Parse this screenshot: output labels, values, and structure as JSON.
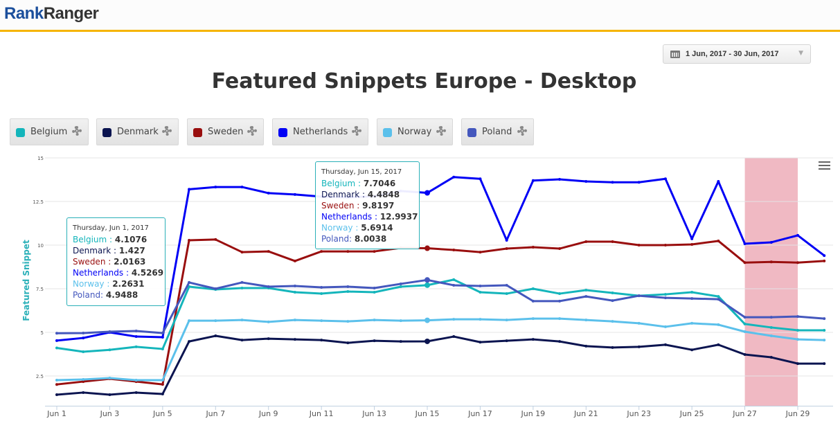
{
  "header": {
    "logo_part1": "Rank",
    "logo_part2": "Ranger"
  },
  "date_range": {
    "label": "1 Jun, 2017 - 30 Jun, 2017",
    "icon": "calendar-icon"
  },
  "legend": [
    {
      "label": "Belgium",
      "color": "#14b5bb"
    },
    {
      "label": "Denmark",
      "color": "#0b1450"
    },
    {
      "label": "Sweden",
      "color": "#990e0e"
    },
    {
      "label": "Netherlands",
      "color": "#0000f5"
    },
    {
      "label": "Norway",
      "color": "#5bc0eb"
    },
    {
      "label": "Poland",
      "color": "#4457bd"
    }
  ],
  "tooltips": [
    {
      "date": "Thursday, Jun 1, 2017",
      "rows": [
        {
          "label": "Belgium : ",
          "value": "4.1076",
          "color": "#14b5bb"
        },
        {
          "label": "Denmark : ",
          "value": "1.427",
          "color": "#0b1450"
        },
        {
          "label": "Sweden : ",
          "value": "2.0163",
          "color": "#990e0e"
        },
        {
          "label": "Netherlands : ",
          "value": "4.5269",
          "color": "#0000f5"
        },
        {
          "label": "Norway : ",
          "value": "2.2631",
          "color": "#5bc0eb"
        },
        {
          "label": "Poland: ",
          "value": "4.9488",
          "color": "#4457bd"
        }
      ]
    },
    {
      "date": "Thursday, Jun 15, 2017",
      "rows": [
        {
          "label": "Belgium : ",
          "value": "7.7046",
          "color": "#14b5bb"
        },
        {
          "label": "Denmark : ",
          "value": "4.4848",
          "color": "#0b1450"
        },
        {
          "label": "Sweden : ",
          "value": "9.8197",
          "color": "#990e0e"
        },
        {
          "label": "Netherlands : ",
          "value": "12.9937",
          "color": "#0000f5"
        },
        {
          "label": "Norway : ",
          "value": "5.6914",
          "color": "#5bc0eb"
        },
        {
          "label": "Poland: ",
          "value": "8.0038",
          "color": "#4457bd"
        }
      ]
    }
  ],
  "chart_data": {
    "type": "line",
    "title": "Featured Snippets Europe - Desktop",
    "xlabel": "",
    "ylabel": "Featured Snippet",
    "ylim": [
      0.8,
      15
    ],
    "yticks": [
      2.5,
      5,
      7.5,
      10,
      12.5,
      15
    ],
    "ytick_labels": [
      "2.5",
      "5",
      "7.5",
      "10",
      "12.5",
      "15"
    ],
    "grid": true,
    "x": [
      "Jun 1",
      "Jun 2",
      "Jun 3",
      "Jun 4",
      "Jun 5",
      "Jun 6",
      "Jun 7",
      "Jun 8",
      "Jun 9",
      "Jun 10",
      "Jun 11",
      "Jun 12",
      "Jun 13",
      "Jun 14",
      "Jun 15",
      "Jun 16",
      "Jun 17",
      "Jun 18",
      "Jun 19",
      "Jun 20",
      "Jun 21",
      "Jun 22",
      "Jun 23",
      "Jun 24",
      "Jun 25",
      "Jun 26",
      "Jun 27",
      "Jun 28",
      "Jun 29",
      "Jun 30"
    ],
    "xtick_labels": [
      "Jun 1",
      "Jun 3",
      "Jun 5",
      "Jun 7",
      "Jun 9",
      "Jun 11",
      "Jun 13",
      "Jun 15",
      "Jun 17",
      "Jun 19",
      "Jun 21",
      "Jun 23",
      "Jun 25",
      "Jun 27",
      "Jun 29"
    ],
    "highlight_band": {
      "from": "Jun 27",
      "to": "Jun 29",
      "color": "#efb5c0"
    },
    "series": [
      {
        "name": "Netherlands",
        "color": "#0000f5",
        "values": [
          4.5269,
          4.68,
          5.0,
          4.76,
          4.72,
          13.2,
          13.33,
          13.33,
          12.98,
          12.9,
          12.78,
          12.74,
          12.8,
          13.1,
          12.9937,
          13.9,
          13.8,
          10.28,
          13.7,
          13.77,
          13.65,
          13.6,
          13.6,
          13.8,
          10.36,
          13.65,
          10.08,
          10.16,
          10.56,
          9.4
        ]
      },
      {
        "name": "Sweden",
        "color": "#990e0e",
        "values": [
          2.0163,
          2.18,
          2.34,
          2.18,
          2.02,
          10.28,
          10.32,
          9.6,
          9.64,
          9.09,
          9.64,
          9.64,
          9.64,
          9.84,
          9.8197,
          9.72,
          9.6,
          9.8,
          9.88,
          9.8,
          10.2,
          10.2,
          10.0,
          10.0,
          10.04,
          10.24,
          9.0,
          9.04,
          9.0,
          9.09
        ]
      },
      {
        "name": "Belgium",
        "color": "#14b5bb",
        "values": [
          4.1076,
          3.89,
          4.0,
          4.17,
          4.05,
          7.62,
          7.46,
          7.54,
          7.54,
          7.3,
          7.22,
          7.34,
          7.3,
          7.62,
          7.7046,
          8.02,
          7.3,
          7.22,
          7.5,
          7.22,
          7.42,
          7.26,
          7.1,
          7.18,
          7.3,
          7.06,
          5.48,
          5.28,
          5.12,
          5.12
        ]
      },
      {
        "name": "Poland",
        "color": "#4457bd",
        "values": [
          4.9488,
          4.96,
          5.04,
          5.08,
          4.96,
          7.86,
          7.5,
          7.86,
          7.62,
          7.66,
          7.58,
          7.62,
          7.54,
          7.78,
          8.0038,
          7.7,
          7.66,
          7.7,
          6.79,
          6.79,
          7.06,
          6.82,
          7.1,
          6.98,
          6.94,
          6.9,
          5.87,
          5.87,
          5.91,
          5.79
        ]
      },
      {
        "name": "Norway",
        "color": "#5bc0eb",
        "values": [
          2.2631,
          2.3,
          2.38,
          2.26,
          2.26,
          5.67,
          5.67,
          5.71,
          5.6,
          5.71,
          5.67,
          5.63,
          5.71,
          5.67,
          5.6914,
          5.75,
          5.75,
          5.71,
          5.79,
          5.79,
          5.71,
          5.63,
          5.52,
          5.32,
          5.52,
          5.44,
          5.04,
          4.8,
          4.6,
          4.56
        ]
      },
      {
        "name": "Denmark",
        "color": "#0b1450",
        "values": [
          1.427,
          1.55,
          1.43,
          1.55,
          1.47,
          4.48,
          4.8,
          4.56,
          4.64,
          4.6,
          4.56,
          4.4,
          4.52,
          4.48,
          4.4848,
          4.76,
          4.44,
          4.52,
          4.6,
          4.48,
          4.21,
          4.13,
          4.17,
          4.29,
          4.0,
          4.29,
          3.73,
          3.57,
          3.21,
          3.21
        ]
      }
    ]
  }
}
